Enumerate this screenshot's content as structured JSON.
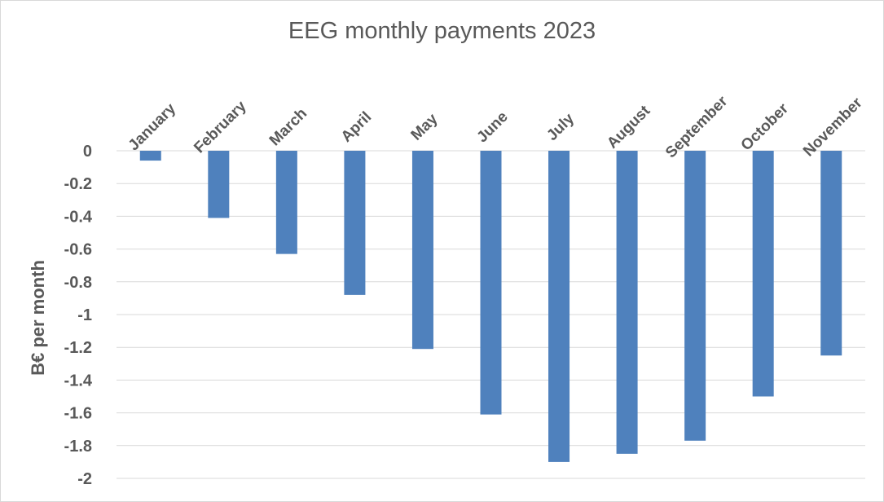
{
  "chart_data": {
    "type": "bar",
    "title": "EEG monthly payments 2023",
    "xlabel": "",
    "ylabel": "B€ per month",
    "categories": [
      "January",
      "February",
      "March",
      "April",
      "May",
      "June",
      "July",
      "August",
      "September",
      "October",
      "November"
    ],
    "values": [
      -0.06,
      -0.41,
      -0.63,
      -0.88,
      -1.21,
      -1.61,
      -1.9,
      -1.85,
      -1.77,
      -1.5,
      -1.25
    ],
    "ylim": [
      -2,
      0
    ],
    "yticks": [
      "0",
      "-0.2",
      "-0.4",
      "-0.6",
      "-0.8",
      "-1",
      "-1.2",
      "-1.4",
      "-1.6",
      "-1.8",
      "-2"
    ],
    "ytick_values": [
      0,
      -0.2,
      -0.4,
      -0.6,
      -0.8,
      -1,
      -1.2,
      -1.4,
      -1.6,
      -1.8,
      -2
    ],
    "grid": true,
    "legend": "none",
    "bar_color": "#4f81bd",
    "grid_color": "#d9d9d9"
  }
}
